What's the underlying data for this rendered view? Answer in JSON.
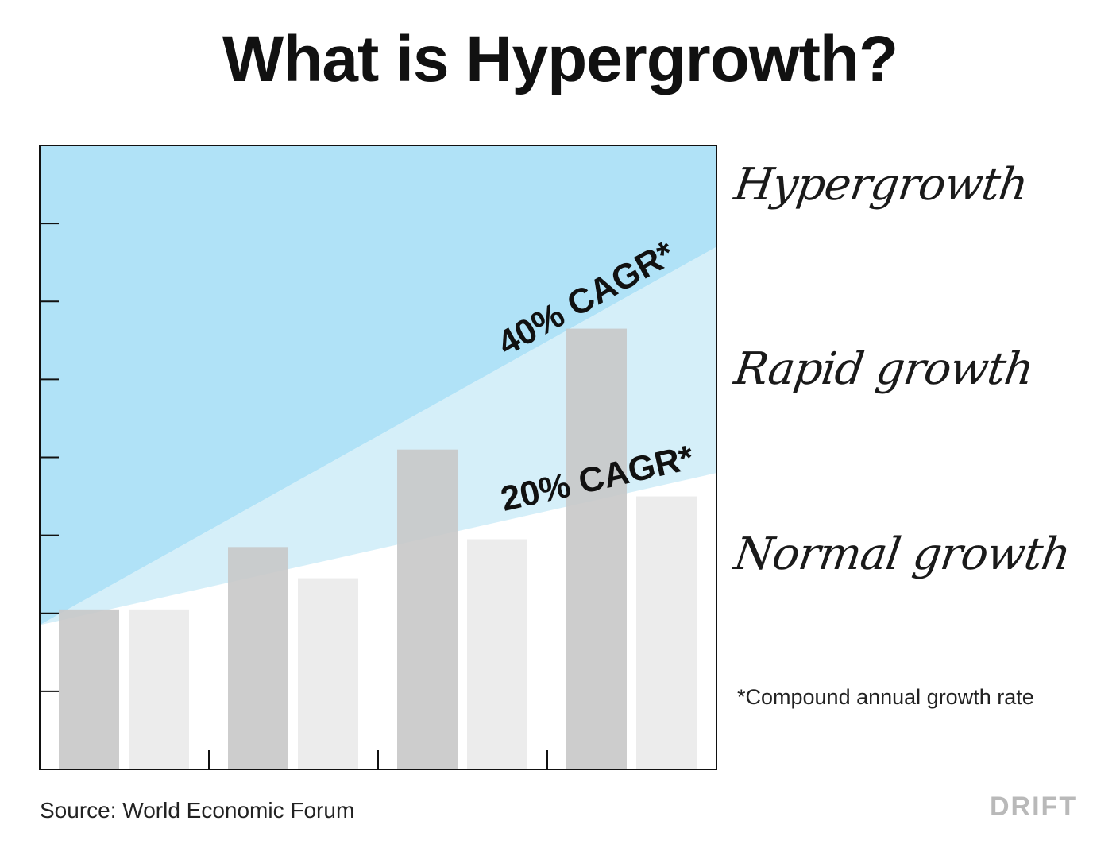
{
  "title": "What is Hypergrowth?",
  "zones": {
    "hyper": "Hypergrowth",
    "rapid": "Rapid growth",
    "normal": "Normal growth"
  },
  "footnote": "*Compound annual growth rate",
  "source": "Source: World Economic Forum",
  "logo": "DRIFT",
  "colors": {
    "hyper_zone": "#b0e2f7",
    "rapid_zone": "#d5eff9",
    "bar_dark": "#c8c8c8",
    "bar_light": "#ececec",
    "text": "#111111",
    "logo": "#b9b9b9"
  },
  "chart_data": {
    "type": "bar",
    "title": "",
    "xlabel": "",
    "ylabel": "",
    "ylim": [
      0,
      8
    ],
    "series": [
      {
        "values": [
          2.05,
          2.85,
          4.1,
          5.65
        ]
      },
      {
        "values": [
          2.05,
          2.45,
          2.95,
          3.5
        ]
      }
    ],
    "growth_lines": [
      {
        "label": "40% CAGR*",
        "start": 1.85,
        "end": 6.7
      },
      {
        "label": "20% CAGR*",
        "start": 1.85,
        "end": 3.8
      }
    ],
    "grid": false
  }
}
